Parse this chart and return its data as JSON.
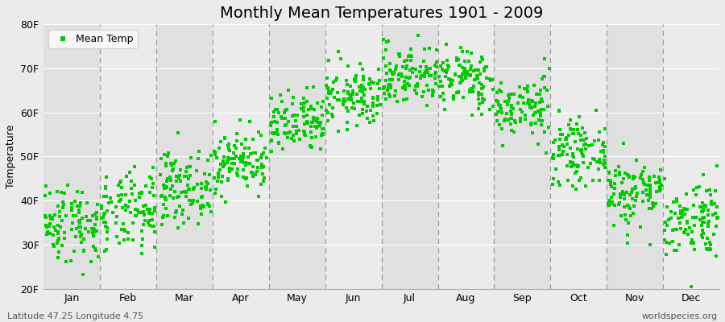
{
  "title": "Monthly Mean Temperatures 1901 - 2009",
  "ylabel": "Temperature",
  "footer_left": "Latitude 47.25 Longitude 4.75",
  "footer_right": "worldspecies.org",
  "legend_label": "Mean Temp",
  "years": 109,
  "month_names": [
    "Jan",
    "Feb",
    "Mar",
    "Apr",
    "May",
    "Jun",
    "Jul",
    "Aug",
    "Sep",
    "Oct",
    "Nov",
    "Dec"
  ],
  "month_mean_temps_F": [
    35.0,
    37.0,
    43.0,
    49.0,
    57.0,
    63.5,
    68.5,
    67.5,
    61.0,
    51.0,
    42.0,
    36.0
  ],
  "month_std_temps_F": [
    4.5,
    4.5,
    4.0,
    3.5,
    3.5,
    3.5,
    3.5,
    3.5,
    3.5,
    3.5,
    4.0,
    4.5
  ],
  "ylim_F": [
    20,
    80
  ],
  "yticks_F": [
    20,
    30,
    40,
    50,
    60,
    70,
    80
  ],
  "bg_color": "#ebebeb",
  "plot_bg_color": "#e4e4e4",
  "band_colors": [
    "#e0e0e0",
    "#ebebeb"
  ],
  "marker_color": "#00cc00",
  "marker_size": 3.5,
  "dashed_line_color": "#999999",
  "title_fontsize": 14,
  "label_fontsize": 9,
  "tick_fontsize": 9,
  "footer_fontsize": 8
}
